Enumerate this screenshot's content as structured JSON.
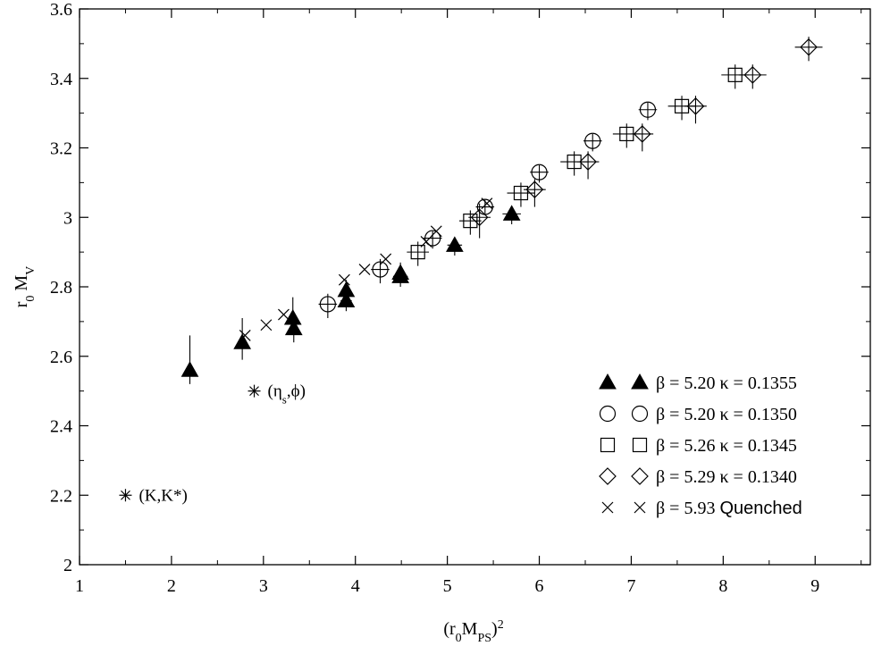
{
  "chart_data": {
    "type": "scatter",
    "title": "",
    "xlabel": {
      "base": "(r",
      "sub": "0",
      "mid": "M",
      "sub2": "PS",
      "tail": ")",
      "sup": "2"
    },
    "ylabel": {
      "base": "r",
      "sub": "0",
      "mid": " M",
      "sub2": "V"
    },
    "xlim": [
      1,
      9.6
    ],
    "ylim": [
      2,
      3.6
    ],
    "x_ticks": [
      1,
      2,
      3,
      4,
      5,
      6,
      7,
      8,
      9
    ],
    "y_ticks": [
      {
        "v": 2,
        "label": "2"
      },
      {
        "v": 2.2,
        "label": "2.2"
      },
      {
        "v": 2.4,
        "label": "2.4"
      },
      {
        "v": 2.6,
        "label": "2.6"
      },
      {
        "v": 2.8,
        "label": "2.8"
      },
      {
        "v": 3,
        "label": "3"
      },
      {
        "v": 3.2,
        "label": "3.2"
      },
      {
        "v": 3.4,
        "label": "3.4"
      },
      {
        "v": 3.6,
        "label": "3.6"
      }
    ],
    "grid": false,
    "legend_position": "bottom-right",
    "series": [
      {
        "marker": "triangle",
        "label": "β = 5.20 κ = 0.1355",
        "points": [
          {
            "x": 2.2,
            "y": 2.56,
            "xerr": 0.03,
            "yerr_up": 0.1,
            "yerr_dn": 0.04
          },
          {
            "x": 2.77,
            "y": 2.64,
            "xerr": 0.05,
            "yerr_up": 0.07,
            "yerr_dn": 0.05
          },
          {
            "x": 3.32,
            "y": 2.71,
            "xerr": 0.05,
            "yerr_up": 0.06,
            "yerr_dn": 0.04
          },
          {
            "x": 3.33,
            "y": 2.68,
            "xerr": 0.05,
            "yerr_up": 0.04,
            "yerr_dn": 0.04
          },
          {
            "x": 3.9,
            "y": 2.79,
            "xerr": 0.05,
            "yerr_up": 0.03,
            "yerr_dn": 0.03
          },
          {
            "x": 3.9,
            "y": 2.76,
            "xerr": 0.06,
            "yerr_up": 0.03,
            "yerr_dn": 0.03
          },
          {
            "x": 4.49,
            "y": 2.84,
            "xerr": 0.05,
            "yerr_up": 0.03,
            "yerr_dn": 0.03
          },
          {
            "x": 4.49,
            "y": 2.83,
            "xerr": 0.08,
            "yerr_up": 0.03,
            "yerr_dn": 0.03
          },
          {
            "x": 5.08,
            "y": 2.92,
            "xerr": 0.08,
            "yerr_up": 0.02,
            "yerr_dn": 0.03
          },
          {
            "x": 5.7,
            "y": 3.01,
            "xerr": 0.1,
            "yerr_up": 0.02,
            "yerr_dn": 0.03
          }
        ]
      },
      {
        "marker": "circle",
        "label": "β = 5.20 κ = 0.1350",
        "points": [
          {
            "x": 3.7,
            "y": 2.75,
            "xerr": 0.1,
            "yerr_up": 0.03,
            "yerr_dn": 0.04
          },
          {
            "x": 4.27,
            "y": 2.85,
            "xerr": 0.1,
            "yerr_up": 0.03,
            "yerr_dn": 0.04
          },
          {
            "x": 4.84,
            "y": 2.94,
            "xerr": 0.1,
            "yerr_up": 0.02,
            "yerr_dn": 0.03
          },
          {
            "x": 5.41,
            "y": 3.03,
            "xerr": 0.1,
            "yerr_up": 0.02,
            "yerr_dn": 0.02
          },
          {
            "x": 6.0,
            "y": 3.13,
            "xerr": 0.1,
            "yerr_up": 0.02,
            "yerr_dn": 0.03
          },
          {
            "x": 6.58,
            "y": 3.22,
            "xerr": 0.1,
            "yerr_up": 0.02,
            "yerr_dn": 0.03
          },
          {
            "x": 7.18,
            "y": 3.31,
            "xerr": 0.1,
            "yerr_up": 0.02,
            "yerr_dn": 0.03
          }
        ]
      },
      {
        "marker": "square",
        "label": "β = 5.26 κ = 0.1345",
        "points": [
          {
            "x": 4.68,
            "y": 2.9,
            "xerr": 0.12,
            "yerr_up": 0.03,
            "yerr_dn": 0.04
          },
          {
            "x": 5.25,
            "y": 2.99,
            "xerr": 0.12,
            "yerr_up": 0.03,
            "yerr_dn": 0.04
          },
          {
            "x": 5.8,
            "y": 3.07,
            "xerr": 0.15,
            "yerr_up": 0.03,
            "yerr_dn": 0.04
          },
          {
            "x": 6.38,
            "y": 3.16,
            "xerr": 0.15,
            "yerr_up": 0.03,
            "yerr_dn": 0.04
          },
          {
            "x": 6.95,
            "y": 3.24,
            "xerr": 0.15,
            "yerr_up": 0.03,
            "yerr_dn": 0.04
          },
          {
            "x": 7.55,
            "y": 3.32,
            "xerr": 0.15,
            "yerr_up": 0.03,
            "yerr_dn": 0.04
          },
          {
            "x": 8.13,
            "y": 3.41,
            "xerr": 0.15,
            "yerr_up": 0.03,
            "yerr_dn": 0.04
          }
        ]
      },
      {
        "marker": "diamond",
        "label": "β = 5.29 κ = 0.1340",
        "points": [
          {
            "x": 5.35,
            "y": 3.0,
            "xerr": 0.12,
            "yerr_up": 0.04,
            "yerr_dn": 0.06
          },
          {
            "x": 5.95,
            "y": 3.08,
            "xerr": 0.12,
            "yerr_up": 0.03,
            "yerr_dn": 0.05
          },
          {
            "x": 6.53,
            "y": 3.16,
            "xerr": 0.12,
            "yerr_up": 0.03,
            "yerr_dn": 0.05
          },
          {
            "x": 7.12,
            "y": 3.24,
            "xerr": 0.12,
            "yerr_up": 0.03,
            "yerr_dn": 0.05
          },
          {
            "x": 7.7,
            "y": 3.32,
            "xerr": 0.12,
            "yerr_up": 0.03,
            "yerr_dn": 0.05
          },
          {
            "x": 8.32,
            "y": 3.41,
            "xerr": 0.15,
            "yerr_up": 0.03,
            "yerr_dn": 0.04
          },
          {
            "x": 8.93,
            "y": 3.49,
            "xerr": 0.15,
            "yerr_up": 0.03,
            "yerr_dn": 0.04
          }
        ]
      },
      {
        "marker": "x",
        "label": "β = 5.93 Quenched",
        "points": [
          {
            "x": 2.8,
            "y": 2.66
          },
          {
            "x": 3.03,
            "y": 2.69
          },
          {
            "x": 3.22,
            "y": 2.72
          },
          {
            "x": 3.88,
            "y": 2.82
          },
          {
            "x": 4.1,
            "y": 2.85
          },
          {
            "x": 4.33,
            "y": 2.88
          },
          {
            "x": 4.77,
            "y": 2.93
          },
          {
            "x": 4.88,
            "y": 2.96
          },
          {
            "x": 5.43,
            "y": 3.04
          }
        ]
      }
    ],
    "annotations": [
      {
        "marker": "asterisk",
        "x": 1.5,
        "y": 2.2,
        "label": "(K,K*)"
      },
      {
        "marker": "asterisk",
        "x": 2.9,
        "y": 2.5,
        "label_parts": [
          "(η",
          "s",
          ",ϕ)"
        ]
      }
    ]
  }
}
